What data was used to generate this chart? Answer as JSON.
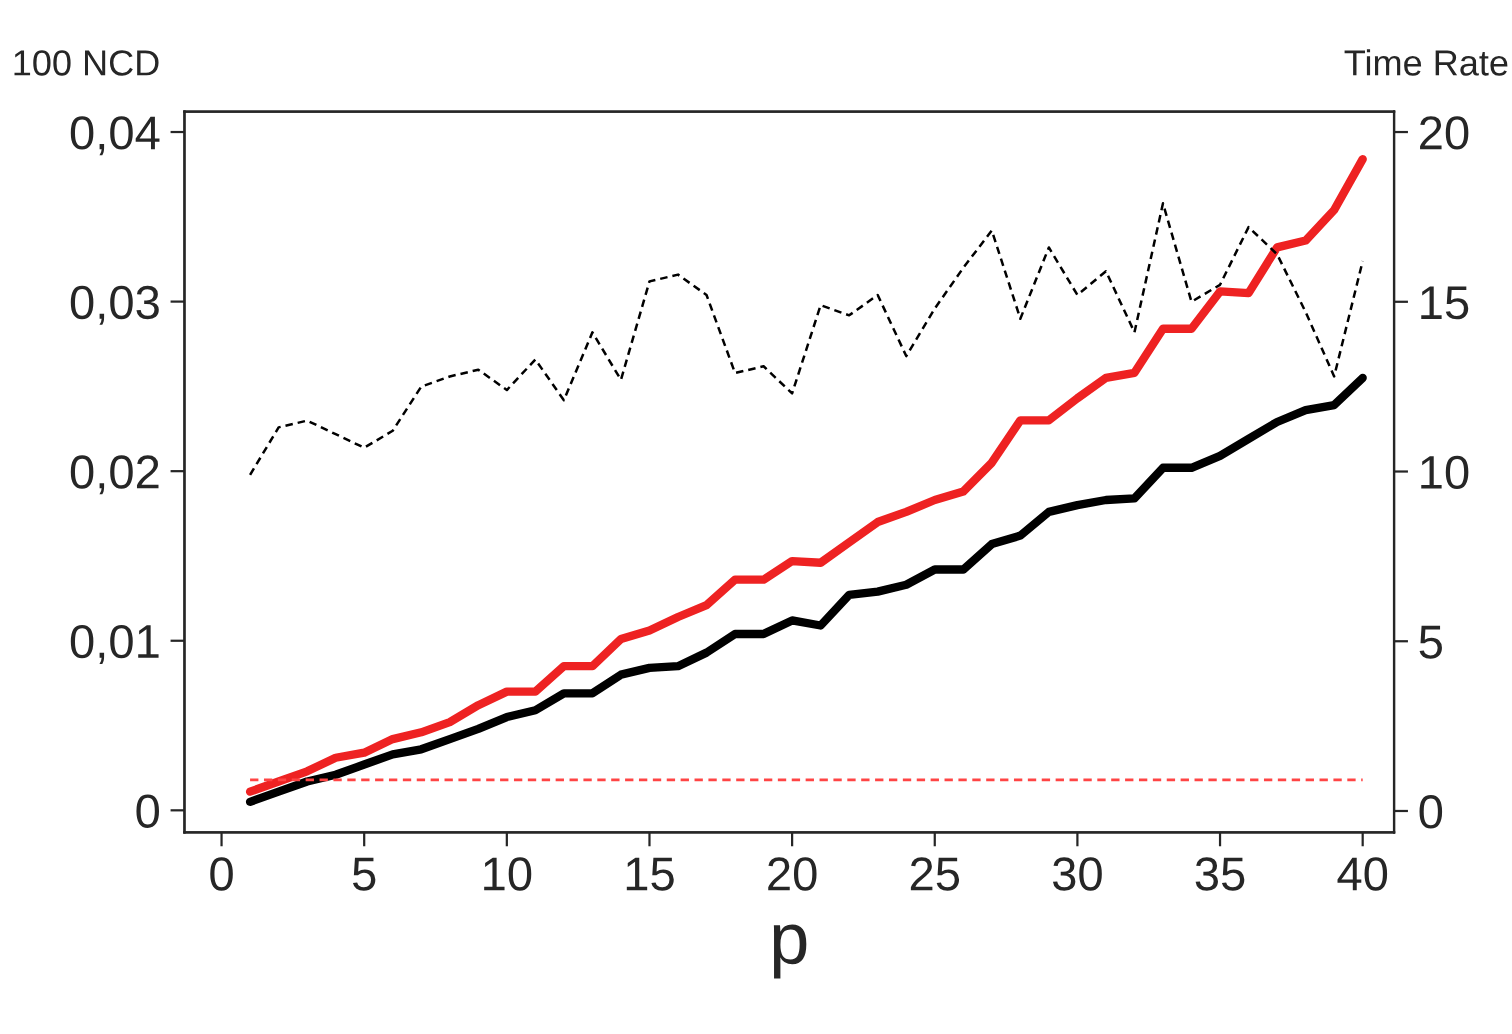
{
  "chart_data": {
    "type": "line",
    "xlabel": "p",
    "ylabel": "100 NCD",
    "y2label": "Time Rate",
    "x": [
      1,
      2,
      3,
      4,
      5,
      6,
      7,
      8,
      9,
      10,
      11,
      12,
      13,
      14,
      15,
      16,
      17,
      18,
      19,
      20,
      21,
      22,
      23,
      24,
      25,
      26,
      27,
      28,
      29,
      30,
      31,
      32,
      33,
      34,
      35,
      36,
      37,
      38,
      39,
      40
    ],
    "series": [
      {
        "color": "#ee2222",
        "line_style": "solid",
        "values": [
          0.0011,
          0.0017,
          0.0023,
          0.0031,
          0.0034,
          0.0042,
          0.0046,
          0.0052,
          0.0062,
          0.007,
          0.007,
          0.0085,
          0.0085,
          0.0101,
          0.0106,
          0.0114,
          0.0121,
          0.0136,
          0.0136,
          0.0147,
          0.0146,
          0.0158,
          0.017,
          0.0176,
          0.0183,
          0.0188,
          0.0205,
          0.023,
          0.023,
          0.0243,
          0.0255,
          0.0258,
          0.0284,
          0.0284,
          0.0306,
          0.0305,
          0.0332,
          0.0336,
          0.0354,
          0.0384
        ]
      },
      {
        "color": "#000000",
        "line_style": "solid",
        "values": [
          0.0005,
          0.0011,
          0.0017,
          0.0021,
          0.0027,
          0.0033,
          0.0036,
          0.0042,
          0.0048,
          0.0055,
          0.0059,
          0.0069,
          0.0069,
          0.008,
          0.0084,
          0.0085,
          0.0093,
          0.0104,
          0.0104,
          0.0112,
          0.0109,
          0.0127,
          0.0129,
          0.0133,
          0.0142,
          0.0142,
          0.0157,
          0.0162,
          0.0176,
          0.018,
          0.0183,
          0.0184,
          0.0202,
          0.0202,
          0.0209,
          0.0219,
          0.0229,
          0.0236,
          0.0239,
          0.0255
        ]
      },
      {
        "color": "#000000",
        "line_style": "dashed",
        "axis": "y2",
        "values": [
          9.9,
          11.3,
          11.5,
          11.1,
          10.7,
          11.2,
          12.5,
          12.8,
          13.0,
          12.4,
          13.3,
          12.1,
          14.1,
          12.7,
          15.6,
          15.8,
          15.2,
          12.9,
          13.1,
          12.3,
          14.9,
          14.6,
          15.2,
          13.4,
          14.8,
          16.0,
          17.1,
          14.5,
          16.6,
          15.2,
          15.9,
          14.1,
          17.9,
          15.0,
          15.5,
          17.2,
          16.4,
          14.7,
          12.8,
          16.2
        ]
      }
    ],
    "ref_lines": [
      {
        "axis": "y",
        "value": 0.0018,
        "color": "#ff4444",
        "line_style": "dashed"
      }
    ],
    "xlim": [
      -1.3,
      41.1
    ],
    "xticks": [
      0,
      5,
      10,
      15,
      20,
      25,
      30,
      35,
      40
    ],
    "ylim": [
      -0.0013,
      0.0412
    ],
    "yticks": [
      {
        "value": 0,
        "label": "0"
      },
      {
        "value": 0.01,
        "label": "0,01"
      },
      {
        "value": 0.02,
        "label": "0,02"
      },
      {
        "value": 0.03,
        "label": "0,03"
      },
      {
        "value": 0.04,
        "label": "0,04"
      }
    ],
    "y2lim": [
      -0.63,
      20.6
    ],
    "y2ticks": [
      0,
      5,
      10,
      15,
      20
    ],
    "grid": false,
    "legend": false,
    "marker": "none"
  }
}
